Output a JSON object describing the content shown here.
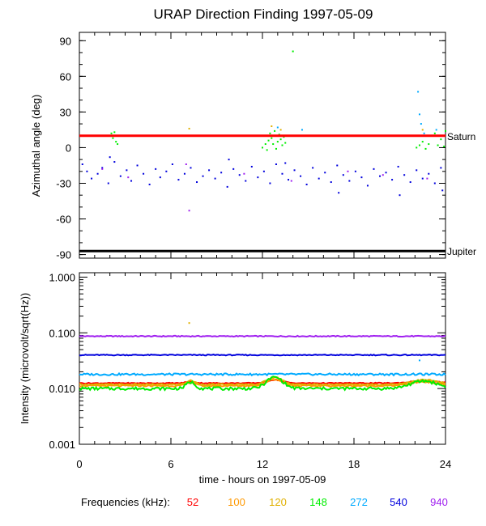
{
  "figure_title": "URAP Direction Finding  1997-05-09",
  "x_axis": {
    "label": "time - hours on 1997-05-09",
    "ticks": [
      0,
      6,
      12,
      18,
      24
    ],
    "range": [
      0,
      24
    ]
  },
  "frequencies": {
    "label": "Frequencies (kHz):",
    "items": [
      {
        "value": "52",
        "color": "#ff0000"
      },
      {
        "value": "100",
        "color": "#ff9900"
      },
      {
        "value": "120",
        "color": "#e0b000"
      },
      {
        "value": "148",
        "color": "#00ee00"
      },
      {
        "value": "272",
        "color": "#00aaff"
      },
      {
        "value": "540",
        "color": "#0000dd"
      },
      {
        "value": "940",
        "color": "#a020f0"
      }
    ]
  },
  "chart_data": [
    {
      "type": "scatter",
      "ylabel": "Azimuthal angle (deg)",
      "ylim": [
        -93,
        97
      ],
      "yticks": [
        "90",
        "60",
        "30",
        "0",
        "-30",
        "-60",
        "-90"
      ],
      "ytick_values": [
        90,
        60,
        30,
        0,
        -30,
        -60,
        -90
      ],
      "reference_lines": [
        {
          "label": "Saturn",
          "y": 10,
          "color": "#ff0000"
        },
        {
          "label": "Jupiter",
          "y": -87,
          "color": "#000000"
        }
      ],
      "series": [
        {
          "freq": "540",
          "color": "#0000dd",
          "points": [
            [
              0.2,
              -14
            ],
            [
              0.5,
              -20
            ],
            [
              0.8,
              -26
            ],
            [
              1.2,
              -22
            ],
            [
              1.5,
              -17
            ],
            [
              1.9,
              -30
            ],
            [
              2.3,
              -12
            ],
            [
              2.7,
              -24
            ],
            [
              3.1,
              -19
            ],
            [
              3.4,
              -28
            ],
            [
              3.8,
              -15
            ],
            [
              4.2,
              -22
            ],
            [
              4.6,
              -31
            ],
            [
              5.0,
              -18
            ],
            [
              5.3,
              -25
            ],
            [
              5.7,
              -20
            ],
            [
              6.1,
              -14
            ],
            [
              6.5,
              -27
            ],
            [
              6.9,
              -22
            ],
            [
              7.3,
              -17
            ],
            [
              7.7,
              -29
            ],
            [
              8.1,
              -24
            ],
            [
              8.5,
              -19
            ],
            [
              8.9,
              -26
            ],
            [
              9.3,
              -21
            ],
            [
              9.7,
              -33
            ],
            [
              10.1,
              -18
            ],
            [
              10.5,
              -23
            ],
            [
              10.9,
              -28
            ],
            [
              11.3,
              -16
            ],
            [
              11.7,
              -25
            ],
            [
              12.1,
              -20
            ],
            [
              12.5,
              -30
            ],
            [
              12.9,
              -14
            ],
            [
              13.3,
              -22
            ],
            [
              13.7,
              -27
            ],
            [
              14.1,
              -19
            ],
            [
              14.5,
              -24
            ],
            [
              14.9,
              -31
            ],
            [
              15.3,
              -17
            ],
            [
              15.7,
              -26
            ],
            [
              16.1,
              -21
            ],
            [
              16.5,
              -29
            ],
            [
              16.9,
              -15
            ],
            [
              17.3,
              -23
            ],
            [
              17.7,
              -28
            ],
            [
              18.1,
              -20
            ],
            [
              18.5,
              -25
            ],
            [
              18.9,
              -32
            ],
            [
              19.3,
              -18
            ],
            [
              19.7,
              -24
            ],
            [
              20.1,
              -21
            ],
            [
              20.5,
              -27
            ],
            [
              20.9,
              -16
            ],
            [
              21.3,
              -23
            ],
            [
              21.7,
              -29
            ],
            [
              22.1,
              -19
            ],
            [
              22.5,
              -26
            ],
            [
              22.9,
              -22
            ],
            [
              23.3,
              -30
            ],
            [
              23.7,
              -17
            ],
            [
              2.0,
              -8
            ],
            [
              9.8,
              -10
            ],
            [
              13.5,
              -13
            ],
            [
              17.0,
              -38
            ],
            [
              21.0,
              -40
            ],
            [
              23.8,
              -36
            ]
          ]
        },
        {
          "freq": "940",
          "color": "#a020f0",
          "points": [
            [
              1.5,
              -18
            ],
            [
              3.2,
              -25
            ],
            [
              7.0,
              -14
            ],
            [
              7.2,
              -53
            ],
            [
              10.8,
              -22
            ],
            [
              13.9,
              -28
            ],
            [
              17.6,
              -20
            ],
            [
              19.9,
              -23
            ],
            [
              22.8,
              -26
            ]
          ]
        },
        {
          "freq": "148",
          "color": "#00ee00",
          "points": [
            [
              2.1,
              12
            ],
            [
              2.3,
              13
            ],
            [
              2.4,
              5
            ],
            [
              2.5,
              3
            ],
            [
              2.2,
              8
            ],
            [
              12.0,
              0
            ],
            [
              12.2,
              3
            ],
            [
              12.4,
              6
            ],
            [
              12.5,
              12
            ],
            [
              12.6,
              8
            ],
            [
              12.7,
              3
            ],
            [
              12.8,
              14
            ],
            [
              12.9,
              10
            ],
            [
              13.0,
              5
            ],
            [
              13.1,
              11
            ],
            [
              13.2,
              7
            ],
            [
              13.3,
              2
            ],
            [
              13.4,
              9
            ],
            [
              12.3,
              -2
            ],
            [
              12.9,
              -1
            ],
            [
              13.5,
              4
            ],
            [
              14.0,
              81
            ],
            [
              22.1,
              0
            ],
            [
              22.3,
              2
            ],
            [
              22.5,
              5
            ],
            [
              22.7,
              -1
            ],
            [
              22.9,
              3
            ],
            [
              23.1,
              10
            ],
            [
              23.3,
              12
            ],
            [
              23.5,
              2
            ],
            [
              23.7,
              7
            ],
            [
              23.9,
              1
            ],
            [
              24.0,
              14
            ]
          ]
        },
        {
          "freq": "272",
          "color": "#00aaff",
          "points": [
            [
              13.0,
              17
            ],
            [
              14.6,
              15
            ],
            [
              22.2,
              47
            ],
            [
              22.3,
              28
            ],
            [
              22.4,
              20
            ],
            [
              22.6,
              12
            ],
            [
              23.4,
              15
            ],
            [
              23.8,
              10
            ]
          ]
        },
        {
          "freq": "120",
          "color": "#e0b000",
          "points": [
            [
              7.2,
              16
            ],
            [
              12.6,
              18
            ],
            [
              13.2,
              15
            ],
            [
              22.5,
              15
            ]
          ]
        }
      ]
    },
    {
      "type": "line",
      "ylabel": "Intensity (microvolt/sqrt(Hz))",
      "yscale": "log",
      "ylim": [
        0.001,
        1.2
      ],
      "yticks": [
        "1.000",
        "0.100",
        "0.010",
        "0.001"
      ],
      "ytick_values": [
        1,
        0.1,
        0.01,
        0.001
      ],
      "series": [
        {
          "freq": "940",
          "color": "#a020f0",
          "base": 0.087,
          "amp": 0.02,
          "bump": 0.0,
          "x": [
            0,
            24
          ]
        },
        {
          "freq": "540",
          "color": "#0000dd",
          "base": 0.04,
          "amp": 0.02,
          "bump": 0.0,
          "x": [
            0,
            24
          ]
        },
        {
          "freq": "272",
          "color": "#00aaff",
          "base": 0.018,
          "amp": 0.04,
          "bump": 0.0,
          "x": [
            0,
            24
          ]
        },
        {
          "freq": "52",
          "color": "#ff0000",
          "base": 0.0125,
          "amp": 0.02,
          "bump": 0.15,
          "x": [
            0,
            24
          ]
        },
        {
          "freq": "100",
          "color": "#ff9900",
          "base": 0.0112,
          "amp": 0.03,
          "bump": 0.3,
          "x": [
            0,
            24
          ]
        },
        {
          "freq": "120",
          "color": "#e0b000",
          "base": 0.0118,
          "amp": 0.03,
          "bump": 0.35,
          "x": [
            0,
            24
          ]
        },
        {
          "freq": "148",
          "color": "#00ee00",
          "base": 0.01,
          "amp": 0.06,
          "bump": 0.6,
          "x": [
            0,
            24
          ]
        }
      ],
      "outliers": [
        {
          "freq": "120",
          "color": "#e0b000",
          "x": 7.2,
          "y": 0.15
        },
        {
          "freq": "272",
          "color": "#00aaff",
          "x": 22.3,
          "y": 0.032
        }
      ]
    }
  ]
}
